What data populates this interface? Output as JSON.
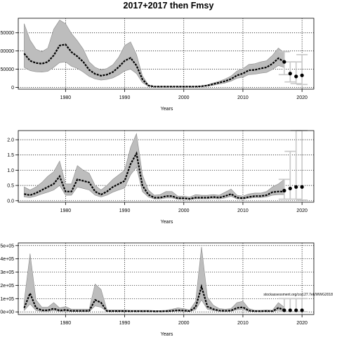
{
  "title": "2017+2017 then Fmsy",
  "credit": "stockassessment.org/cod.27.7ek/WWG2018",
  "colors": {
    "band": "#bdbdbd",
    "line": "#000000",
    "grid": "#000000",
    "ci": "#c8c8c8"
  },
  "chart_data": [
    {
      "type": "line",
      "panel": "catch",
      "xlabel": "Years",
      "ylabel": "",
      "xlim": [
        1972,
        2022
      ],
      "ylim": [
        -5000,
        190000
      ],
      "xticks": [
        1980,
        1990,
        2000,
        2010,
        2020
      ],
      "yticks": [
        0,
        50000,
        100000,
        150000
      ],
      "ytick_labels": [
        "0",
        "50000",
        "100000",
        "150000"
      ],
      "grid": true,
      "x": [
        1973,
        1974,
        1975,
        1976,
        1977,
        1978,
        1979,
        1980,
        1981,
        1982,
        1983,
        1984,
        1985,
        1986,
        1987,
        1988,
        1989,
        1990,
        1991,
        1992,
        1993,
        1994,
        1995,
        1996,
        1997,
        1998,
        1999,
        2000,
        2001,
        2002,
        2003,
        2004,
        2005,
        2006,
        2007,
        2008,
        2009,
        2010,
        2011,
        2012,
        2013,
        2014,
        2015,
        2016,
        2017
      ],
      "estimate": [
        93000,
        73000,
        67000,
        65000,
        70000,
        88000,
        115000,
        118000,
        97000,
        85000,
        70000,
        48000,
        37000,
        32000,
        35000,
        42000,
        56000,
        73000,
        81000,
        60000,
        22000,
        5000,
        2000,
        2000,
        2000,
        2000,
        2000,
        2000,
        2000,
        2000,
        3000,
        5000,
        9000,
        13000,
        17000,
        23000,
        33000,
        38000,
        47000,
        48000,
        52000,
        55000,
        65000,
        80000,
        70000
      ],
      "lower": [
        55000,
        46000,
        43000,
        42000,
        44000,
        55000,
        68000,
        70000,
        58000,
        52000,
        42000,
        30000,
        23000,
        20000,
        22000,
        26000,
        34000,
        45000,
        50000,
        38000,
        13000,
        3000,
        1000,
        1000,
        1000,
        1000,
        1000,
        1000,
        1000,
        1000,
        2000,
        3000,
        6000,
        9000,
        12000,
        17000,
        25000,
        28000,
        35000,
        36000,
        39000,
        41000,
        49000,
        60000,
        55000
      ],
      "upper": [
        175000,
        130000,
        105000,
        98000,
        108000,
        160000,
        185000,
        175000,
        148000,
        128000,
        105000,
        70000,
        55000,
        48000,
        52000,
        62000,
        83000,
        115000,
        125000,
        90000,
        32000,
        7000,
        3000,
        3000,
        3000,
        3000,
        3000,
        3000,
        3000,
        3000,
        4000,
        7000,
        12000,
        17000,
        23000,
        31000,
        45000,
        51000,
        63000,
        65000,
        70000,
        73000,
        88000,
        108000,
        95000
      ],
      "forecast": {
        "x": [
          2017,
          2018,
          2019,
          2020
        ],
        "median": [
          70000,
          38000,
          30000,
          33000
        ],
        "lower": [
          35000,
          15000,
          10000,
          8000
        ],
        "upper": [
          98000,
          70000,
          70000,
          90000
        ]
      }
    },
    {
      "type": "line",
      "panel": "F",
      "xlabel": "Years",
      "ylabel": "",
      "xlim": [
        1972,
        2022
      ],
      "ylim": [
        -0.05,
        2.3
      ],
      "xticks": [
        1980,
        1990,
        2000,
        2010,
        2020
      ],
      "yticks": [
        0,
        0.5,
        1.0,
        1.5,
        2.0
      ],
      "ytick_labels": [
        "0.0",
        "0.5",
        "1.0",
        "1.5",
        "2.0"
      ],
      "grid": true,
      "x": [
        1973,
        1974,
        1975,
        1976,
        1977,
        1978,
        1979,
        1980,
        1981,
        1982,
        1983,
        1984,
        1985,
        1986,
        1987,
        1988,
        1989,
        1990,
        1991,
        1992,
        1993,
        1994,
        1995,
        1996,
        1997,
        1998,
        1999,
        2000,
        2001,
        2002,
        2003,
        2004,
        2005,
        2006,
        2007,
        2008,
        2009,
        2010,
        2011,
        2012,
        2013,
        2014,
        2015,
        2016,
        2017
      ],
      "estimate": [
        0.22,
        0.18,
        0.25,
        0.35,
        0.45,
        0.55,
        0.8,
        0.3,
        0.3,
        0.7,
        0.65,
        0.6,
        0.3,
        0.2,
        0.3,
        0.45,
        0.55,
        0.65,
        1.2,
        1.55,
        0.5,
        0.2,
        0.1,
        0.1,
        0.15,
        0.15,
        0.08,
        0.08,
        0.06,
        0.1,
        0.1,
        0.1,
        0.12,
        0.1,
        0.15,
        0.22,
        0.1,
        0.08,
        0.12,
        0.15,
        0.15,
        0.18,
        0.28,
        0.3,
        0.3
      ],
      "lower": [
        0.12,
        0.1,
        0.15,
        0.22,
        0.28,
        0.35,
        0.5,
        0.18,
        0.18,
        0.45,
        0.4,
        0.35,
        0.18,
        0.12,
        0.18,
        0.28,
        0.35,
        0.42,
        0.85,
        1.1,
        0.3,
        0.12,
        0.06,
        0.06,
        0.09,
        0.09,
        0.05,
        0.05,
        0.04,
        0.06,
        0.06,
        0.06,
        0.07,
        0.06,
        0.09,
        0.14,
        0.06,
        0.05,
        0.08,
        0.1,
        0.1,
        0.12,
        0.18,
        0.2,
        0.2
      ],
      "upper": [
        0.45,
        0.35,
        0.45,
        0.6,
        0.8,
        0.95,
        1.3,
        0.55,
        0.55,
        1.15,
        1.0,
        0.9,
        0.5,
        0.35,
        0.5,
        0.7,
        0.85,
        1.0,
        1.75,
        2.2,
        0.85,
        0.35,
        0.18,
        0.2,
        0.3,
        0.3,
        0.15,
        0.15,
        0.12,
        0.2,
        0.18,
        0.18,
        0.2,
        0.18,
        0.28,
        0.38,
        0.18,
        0.15,
        0.22,
        0.25,
        0.25,
        0.3,
        0.45,
        0.55,
        0.7
      ],
      "forecast": {
        "x": [
          2017,
          2018,
          2019,
          2020
        ],
        "median": [
          0.33,
          0.4,
          0.45,
          0.45
        ],
        "lower": [
          0.05,
          0.05,
          0.05,
          0.02
        ],
        "upper": [
          0.7,
          1.62,
          2.3,
          2.3
        ]
      }
    },
    {
      "type": "line",
      "panel": "recruitment",
      "xlabel": "Years",
      "ylabel": "",
      "xlim": [
        1972,
        2022
      ],
      "ylim": [
        -0.2,
        5.2
      ],
      "xticks": [
        1980,
        1990,
        2000,
        2010,
        2020
      ],
      "yticks": [
        0,
        1,
        2,
        3,
        4,
        5
      ],
      "ytick_labels": [
        "0e+00",
        "1e+05",
        "2e+05",
        "3e+05",
        "4e+05",
        "5e+05"
      ],
      "grid": true,
      "x": [
        1973,
        1974,
        1975,
        1976,
        1977,
        1978,
        1979,
        1980,
        1981,
        1982,
        1983,
        1984,
        1985,
        1986,
        1987,
        1988,
        1989,
        1990,
        1991,
        1992,
        1993,
        1994,
        1995,
        1996,
        1997,
        1998,
        1999,
        2000,
        2001,
        2002,
        2003,
        2004,
        2005,
        2006,
        2007,
        2008,
        2009,
        2010,
        2011,
        2012,
        2013,
        2014,
        2015,
        2016,
        2017
      ],
      "estimate": [
        0.3,
        1.4,
        0.3,
        0.12,
        0.12,
        0.25,
        0.1,
        0.15,
        0.08,
        0.08,
        0.08,
        0.08,
        0.9,
        0.7,
        0.06,
        0.06,
        0.06,
        0.06,
        0.05,
        0.05,
        0.05,
        0.05,
        0.04,
        0.04,
        0.05,
        0.08,
        0.12,
        0.1,
        0.06,
        0.35,
        1.9,
        0.4,
        0.2,
        0.1,
        0.08,
        0.1,
        0.3,
        0.35,
        0.1,
        0.05,
        0.05,
        0.06,
        0.05,
        0.3,
        0.15
      ],
      "lower": [
        0.1,
        0.6,
        0.1,
        0.05,
        0.05,
        0.1,
        0.04,
        0.06,
        0.03,
        0.03,
        0.03,
        0.03,
        0.45,
        0.35,
        0.03,
        0.03,
        0.03,
        0.03,
        0.02,
        0.02,
        0.02,
        0.02,
        0.02,
        0.02,
        0.02,
        0.04,
        0.06,
        0.05,
        0.03,
        0.15,
        0.9,
        0.2,
        0.1,
        0.05,
        0.04,
        0.05,
        0.15,
        0.18,
        0.05,
        0.02,
        0.02,
        0.03,
        0.02,
        0.12,
        0.06
      ],
      "upper": [
        0.8,
        4.4,
        0.9,
        0.35,
        0.35,
        0.7,
        0.3,
        0.4,
        0.2,
        0.2,
        0.2,
        0.2,
        2.1,
        1.7,
        0.15,
        0.15,
        0.15,
        0.15,
        0.12,
        0.12,
        0.12,
        0.12,
        0.1,
        0.1,
        0.12,
        0.2,
        0.3,
        0.25,
        0.15,
        0.8,
        4.9,
        1.1,
        0.5,
        0.25,
        0.2,
        0.25,
        0.7,
        0.8,
        0.25,
        0.12,
        0.12,
        0.15,
        0.12,
        0.7,
        0.35
      ],
      "forecast": {
        "x": [
          2017,
          2018,
          2019,
          2020
        ],
        "median": [
          0.12,
          0.12,
          0.12,
          0.12
        ],
        "lower": [
          0.02,
          0.02,
          0.02,
          0.02
        ],
        "upper": [
          1.0,
          1.0,
          1.0,
          1.0
        ]
      }
    }
  ]
}
